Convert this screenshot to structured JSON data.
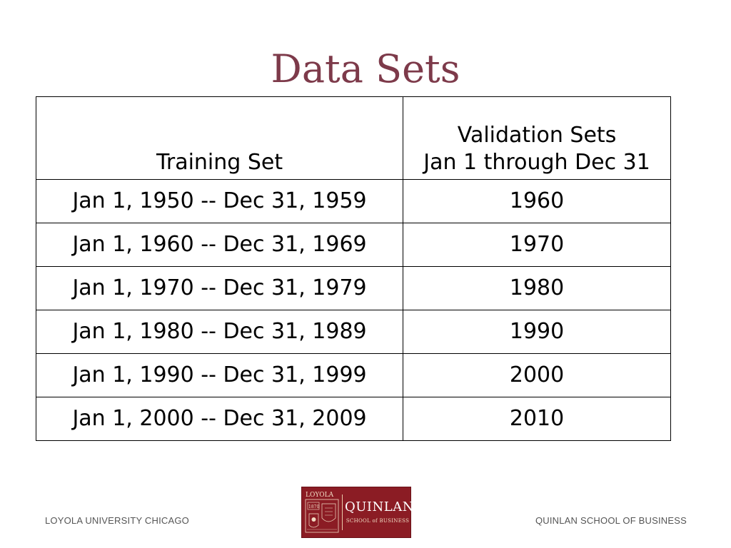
{
  "slide": {
    "title": "Data Sets",
    "table": {
      "headers": {
        "training": "Training Set",
        "validation_line1": "Validation Sets",
        "validation_line2": "Jan 1 through Dec 31"
      },
      "rows": [
        {
          "training": "Jan 1, 1950 -- Dec 31, 1959",
          "validation": "1960"
        },
        {
          "training": "Jan 1, 1960 -- Dec 31, 1969",
          "validation": "1970"
        },
        {
          "training": "Jan 1, 1970 -- Dec 31, 1979",
          "validation": "1980"
        },
        {
          "training": "Jan 1, 1980 -- Dec 31, 1989",
          "validation": "1990"
        },
        {
          "training": "Jan 1, 1990 -- Dec 31, 1999",
          "validation": "2000"
        },
        {
          "training": "Jan 1, 2000 -- Dec 31, 2009",
          "validation": "2010"
        }
      ]
    }
  },
  "footer": {
    "left": "LOYOLA UNIVERSITY CHICAGO",
    "right": "QUINLAN SCHOOL OF BUSINESS",
    "logo": {
      "name": "QUINLAN",
      "subtitle": "SCHOOL of BUSINESS",
      "seal_text": "LOYOLA",
      "seal_year": "1870"
    }
  },
  "colors": {
    "title": "#7d3a4a",
    "logo_background": "#8b1c24",
    "footer_text": "#555555"
  }
}
